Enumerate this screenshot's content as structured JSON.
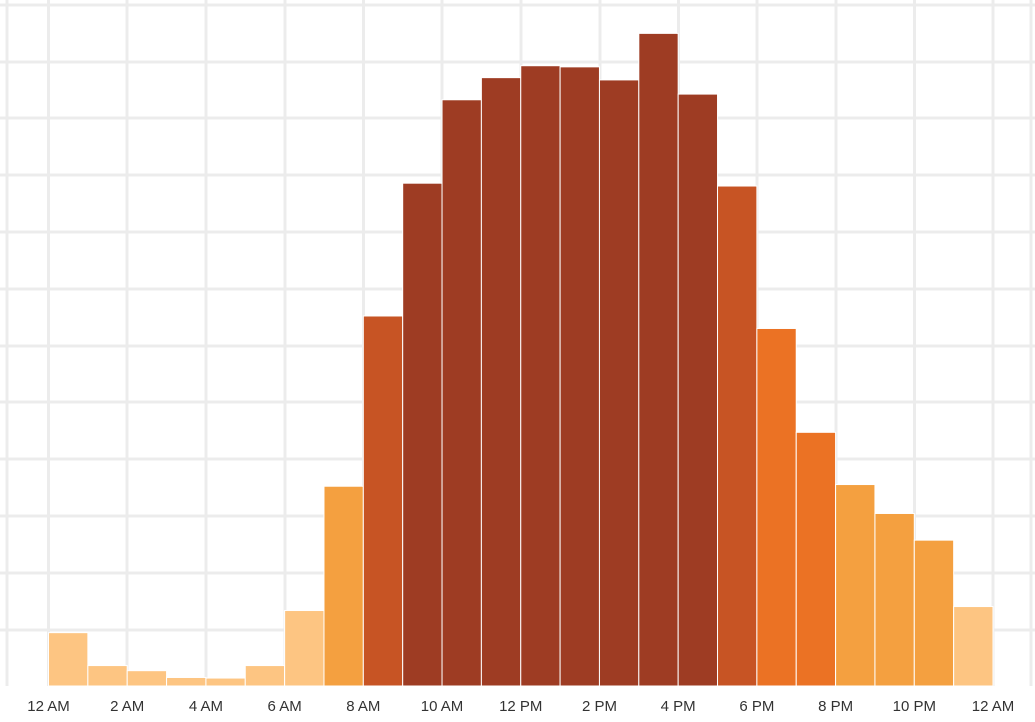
{
  "chart_data": {
    "type": "bar",
    "title": "",
    "xlabel": "",
    "ylabel": "",
    "x_ticks": [
      "12 AM",
      "2 AM",
      "4 AM",
      "6 AM",
      "8 AM",
      "10 AM",
      "12 PM",
      "2 PM",
      "4 PM",
      "6 PM",
      "8 PM",
      "10 PM",
      "12 AM"
    ],
    "categories": [
      "0",
      "1",
      "2",
      "3",
      "4",
      "5",
      "6",
      "7",
      "8",
      "9",
      "10",
      "11",
      "12",
      "13",
      "14",
      "15",
      "16",
      "17",
      "18",
      "19",
      "20",
      "21",
      "22",
      "23"
    ],
    "values": [
      0.94,
      0.36,
      0.27,
      0.15,
      0.14,
      0.36,
      1.33,
      3.52,
      6.52,
      8.86,
      10.33,
      10.72,
      10.93,
      10.91,
      10.68,
      11.5,
      10.43,
      8.81,
      6.3,
      4.47,
      3.55,
      3.04,
      2.57,
      1.4
    ],
    "colors": [
      "#fdc582",
      "#fdc582",
      "#fdc582",
      "#fdc582",
      "#fdc582",
      "#fdc582",
      "#fdc582",
      "#f4a040",
      "#c75424",
      "#9e3c23",
      "#9e3c23",
      "#9e3c23",
      "#9e3c23",
      "#9e3c23",
      "#9e3c23",
      "#9e3c23",
      "#9e3c23",
      "#c75424",
      "#eb7224",
      "#eb7224",
      "#f4a040",
      "#f4a040",
      "#f4a040",
      "#fdc582"
    ],
    "ylim": [
      0,
      12
    ],
    "grid": true,
    "legend": "none"
  }
}
